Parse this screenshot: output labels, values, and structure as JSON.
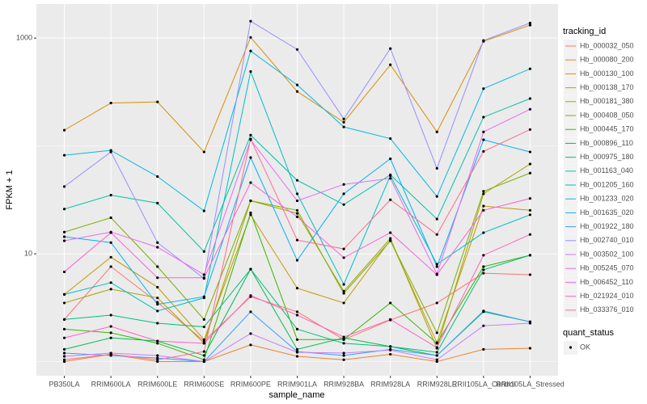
{
  "chart_data": {
    "type": "line",
    "x_label": "sample_name",
    "y_label": "FPKM + 1",
    "legend_title": "tracking_id",
    "point_legend": {
      "title": "quant_status",
      "entries": [
        "OK"
      ]
    },
    "log_y": true,
    "grid": true,
    "legend_position": "right",
    "ylim": [
      0.74,
      2070
    ],
    "yticks": [
      10,
      1000
    ],
    "minor_yticks": [
      1,
      100
    ],
    "categories": [
      "PB350LA",
      "RRIM600LA",
      "RRIM600LE",
      "RRIM600SE",
      "RRIM600PE",
      "RRIM901LA",
      "RRIM928BA",
      "RRIM928LA",
      "RRIM928LE",
      "RRII105LA_Control",
      "RRII105LA_Stressed"
    ],
    "series": [
      {
        "name": "Hb_000032_050",
        "color": "#F8766D",
        "values": [
          2.46,
          7.6,
          3.55,
          1.55,
          4.0,
          2.9,
          1.6,
          2.43,
          3.5,
          6.6,
          6.4
        ]
      },
      {
        "name": "Hb_000080_200",
        "color": "#EA8331",
        "values": [
          1.0,
          1.17,
          1.0,
          1.0,
          1.43,
          1.12,
          1.04,
          1.17,
          1.0,
          1.3,
          1.33
        ]
      },
      {
        "name": "Hb_000130_100",
        "color": "#D89000",
        "values": [
          140,
          250,
          256,
          88,
          1015,
          320,
          166,
          566,
          135,
          933,
          1320
        ]
      },
      {
        "name": "Hb_000138_170",
        "color": "#C09B00",
        "values": [
          4.2,
          9.3,
          4.9,
          1.6,
          23,
          4.8,
          3.5,
          13.4,
          1.5,
          27.7,
          25.3
        ]
      },
      {
        "name": "Hb_000181_380",
        "color": "#A3A500",
        "values": [
          3.5,
          4.7,
          3.9,
          1.48,
          31,
          23.7,
          4.5,
          13.9,
          1.33,
          36,
          68
        ]
      },
      {
        "name": "Hb_000408_050",
        "color": "#7CAE00",
        "values": [
          15.9,
          21.6,
          7.6,
          2.46,
          31,
          25.3,
          4.3,
          13.2,
          1.85,
          38,
          56
        ]
      },
      {
        "name": "Hb_000445_170",
        "color": "#39B600",
        "values": [
          2.0,
          1.85,
          1.48,
          1.04,
          24,
          1.6,
          1.6,
          3.5,
          1.48,
          7.6,
          9.7
        ]
      },
      {
        "name": "Hb_000896_110",
        "color": "#00BB4E",
        "values": [
          1.3,
          1.66,
          1.55,
          1.14,
          7.2,
          1.3,
          1.66,
          1.38,
          1.14,
          2.9,
          2.34
        ]
      },
      {
        "name": "Hb_000975_180",
        "color": "#00BF7D",
        "values": [
          2.46,
          2.7,
          2.27,
          2.1,
          7.2,
          2.0,
          1.48,
          1.38,
          1.22,
          7.1,
          9.7
        ]
      },
      {
        "name": "Hb_001163_040",
        "color": "#00C1A3",
        "values": [
          26,
          35,
          29.5,
          10.5,
          126,
          48,
          28.6,
          54,
          21,
          185,
          275
        ]
      },
      {
        "name": "Hb_001205_160",
        "color": "#00BFC4",
        "values": [
          4.2,
          5.4,
          2.95,
          3.9,
          490,
          36,
          5.2,
          53,
          8.0,
          15.7,
          23
        ]
      },
      {
        "name": "Hb_001233_020",
        "color": "#00BAE0",
        "values": [
          82,
          91,
          52,
          25,
          760,
          368,
          150,
          117,
          34,
          340,
          519
        ]
      },
      {
        "name": "Hb_001635_020",
        "color": "#00B0F6",
        "values": [
          14.4,
          12.7,
          3.4,
          4.0,
          78,
          8.7,
          36,
          76,
          7.6,
          114,
          88
        ]
      },
      {
        "name": "Hb_001922_180",
        "color": "#35A2FF",
        "values": [
          1.2,
          1.14,
          1.08,
          1.0,
          2.9,
          1.24,
          1.14,
          1.3,
          1.14,
          2.95,
          2.34
        ]
      },
      {
        "name": "Hb_002740_010",
        "color": "#9590FF",
        "values": [
          42,
          88,
          12.7,
          5.9,
          1435,
          785,
          178,
          800,
          62,
          950,
          1380
        ]
      },
      {
        "name": "Hb_003502_100",
        "color": "#C77CFF",
        "values": [
          1.12,
          1.2,
          1.14,
          1.0,
          1.82,
          1.22,
          1.2,
          1.28,
          1.04,
          2.15,
          2.27
        ]
      },
      {
        "name": "Hb_005245_070",
        "color": "#E76BF3",
        "values": [
          13.2,
          15.9,
          11.5,
          6.4,
          114,
          31,
          44,
          50,
          6.5,
          135,
          219
        ]
      },
      {
        "name": "Hb_006452_110",
        "color": "#FA62DB",
        "values": [
          6.8,
          15.7,
          6.0,
          6.0,
          45.7,
          22,
          9.2,
          15.7,
          6.4,
          25.3,
          32.6
        ]
      },
      {
        "name": "Hb_021924_010",
        "color": "#FF62BC",
        "values": [
          1.66,
          2.12,
          1.55,
          1.48,
          4.1,
          2.7,
          1.69,
          2.46,
          1.35,
          9.7,
          15.1
        ]
      },
      {
        "name": "Hb_033376_010",
        "color": "#FF6C91",
        "values": [
          1.04,
          1.17,
          1.04,
          1.24,
          116,
          13.4,
          11.1,
          31.7,
          15.1,
          89,
          142
        ]
      }
    ]
  }
}
